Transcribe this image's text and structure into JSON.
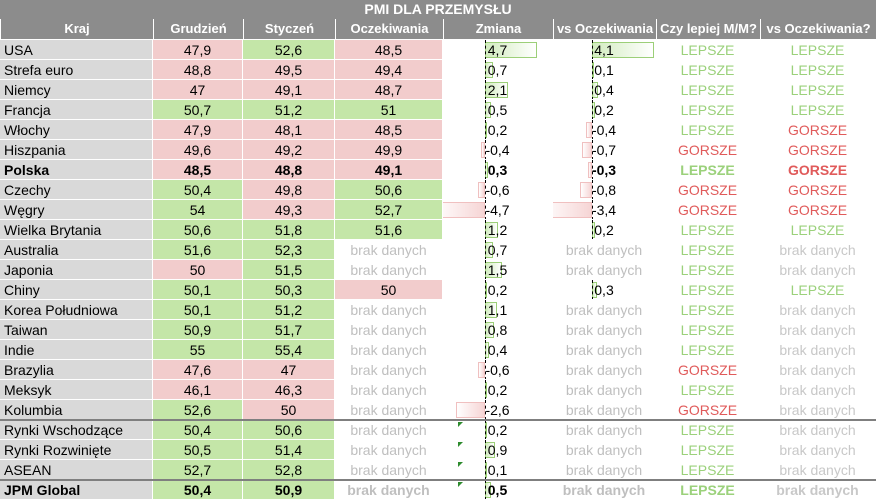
{
  "title": "PMI DLA PRZEMYSŁU",
  "headers": [
    "Kraj",
    "Grudzień",
    "Styczeń",
    "Oczekiwania",
    "Zmiana",
    "vs Oczekiwania",
    "Czy lepiej M/M?",
    "vs Oczekiwania?"
  ],
  "colors": {
    "header_bg": "#8c8c8c",
    "good_text": "#9bd17b",
    "bad_text": "#e05a5a",
    "green_cell": "#c4e6a8",
    "red_cell": "#f2cccc"
  },
  "rows": [
    {
      "kraj": "USA",
      "gru": "47,9",
      "sty": "52,6",
      "ocz": "48,5",
      "zm": "4,7",
      "zmv": 4.7,
      "vs": "4,1",
      "vsv": 4.1,
      "mm": "LEPSZE",
      "vo": "LEPSZE",
      "gc": "red",
      "sc": "green",
      "oc": "red"
    },
    {
      "kraj": "Strefa euro",
      "gru": "48,8",
      "sty": "49,5",
      "ocz": "49,4",
      "zm": "0,7",
      "zmv": 0.7,
      "vs": "0,1",
      "vsv": 0.1,
      "mm": "LEPSZE",
      "vo": "LEPSZE",
      "gc": "red",
      "sc": "red",
      "oc": "red"
    },
    {
      "kraj": "Niemcy",
      "gru": "47",
      "sty": "49,1",
      "ocz": "48,7",
      "zm": "2,1",
      "zmv": 2.1,
      "vs": "0,4",
      "vsv": 0.4,
      "mm": "LEPSZE",
      "vo": "LEPSZE",
      "gc": "red",
      "sc": "red",
      "oc": "red"
    },
    {
      "kraj": "Francja",
      "gru": "50,7",
      "sty": "51,2",
      "ocz": "51",
      "zm": "0,5",
      "zmv": 0.5,
      "vs": "0,2",
      "vsv": 0.2,
      "mm": "LEPSZE",
      "vo": "LEPSZE",
      "gc": "green",
      "sc": "green",
      "oc": "green"
    },
    {
      "kraj": "Włochy",
      "gru": "47,9",
      "sty": "48,1",
      "ocz": "48,5",
      "zm": "0,2",
      "zmv": 0.2,
      "vs": "-0,4",
      "vsv": -0.4,
      "mm": "LEPSZE",
      "vo": "GORSZE",
      "gc": "red",
      "sc": "red",
      "oc": "red"
    },
    {
      "kraj": "Hiszpania",
      "gru": "49,6",
      "sty": "49,2",
      "ocz": "49,9",
      "zm": "-0,4",
      "zmv": -0.4,
      "vs": "-0,7",
      "vsv": -0.7,
      "mm": "GORSZE",
      "vo": "GORSZE",
      "gc": "red",
      "sc": "red",
      "oc": "red"
    },
    {
      "kraj": "Polska",
      "gru": "48,5",
      "sty": "48,8",
      "ocz": "49,1",
      "zm": "0,3",
      "zmv": 0.3,
      "vs": "-0,3",
      "vsv": -0.3,
      "mm": "LEPSZE",
      "vo": "GORSZE",
      "gc": "red",
      "sc": "red",
      "oc": "red",
      "bold": true
    },
    {
      "kraj": "Czechy",
      "gru": "50,4",
      "sty": "49,8",
      "ocz": "50,6",
      "zm": "-0,6",
      "zmv": -0.6,
      "vs": "-0,8",
      "vsv": -0.8,
      "mm": "GORSZE",
      "vo": "GORSZE",
      "gc": "green",
      "sc": "red",
      "oc": "green"
    },
    {
      "kraj": "Węgry",
      "gru": "54",
      "sty": "49,3",
      "ocz": "52,7",
      "zm": "-4,7",
      "zmv": -4.7,
      "vs": "-3,4",
      "vsv": -3.4,
      "mm": "GORSZE",
      "vo": "GORSZE",
      "gc": "green",
      "sc": "red",
      "oc": "green"
    },
    {
      "kraj": "Wielka Brytania",
      "gru": "50,6",
      "sty": "51,8",
      "ocz": "51,6",
      "zm": "1,2",
      "zmv": 1.2,
      "vs": "0,2",
      "vsv": 0.2,
      "mm": "LEPSZE",
      "vo": "LEPSZE",
      "gc": "green",
      "sc": "green",
      "oc": "green"
    },
    {
      "kraj": "Australia",
      "gru": "51,6",
      "sty": "52,3",
      "ocz": "brak danych",
      "zm": "0,7",
      "zmv": 0.7,
      "vs": "brak danych",
      "mm": "LEPSZE",
      "vo": "brak danych",
      "gc": "green",
      "sc": "green",
      "oc": "nd"
    },
    {
      "kraj": "Japonia",
      "gru": "50",
      "sty": "51,5",
      "ocz": "brak danych",
      "zm": "1,5",
      "zmv": 1.5,
      "vs": "brak danych",
      "mm": "LEPSZE",
      "vo": "brak danych",
      "gc": "red",
      "sc": "green",
      "oc": "nd"
    },
    {
      "kraj": "Chiny",
      "gru": "50,1",
      "sty": "50,3",
      "ocz": "50",
      "zm": "0,2",
      "zmv": 0.2,
      "vs": "0,3",
      "vsv": 0.3,
      "mm": "LEPSZE",
      "vo": "LEPSZE",
      "gc": "green",
      "sc": "green",
      "oc": "red"
    },
    {
      "kraj": "Korea Południowa",
      "gru": "50,1",
      "sty": "51,2",
      "ocz": "brak danych",
      "zm": "1,1",
      "zmv": 1.1,
      "vs": "brak danych",
      "mm": "LEPSZE",
      "vo": "brak danych",
      "gc": "green",
      "sc": "green",
      "oc": "nd"
    },
    {
      "kraj": "Taiwan",
      "gru": "50,9",
      "sty": "51,7",
      "ocz": "brak danych",
      "zm": "0,8",
      "zmv": 0.8,
      "vs": "brak danych",
      "mm": "LEPSZE",
      "vo": "brak danych",
      "gc": "green",
      "sc": "green",
      "oc": "nd"
    },
    {
      "kraj": "Indie",
      "gru": "55",
      "sty": "55,4",
      "ocz": "brak danych",
      "zm": "0,4",
      "zmv": 0.4,
      "vs": "brak danych",
      "mm": "LEPSZE",
      "vo": "brak danych",
      "gc": "green",
      "sc": "green",
      "oc": "nd"
    },
    {
      "kraj": "Brazylia",
      "gru": "47,6",
      "sty": "47",
      "ocz": "brak danych",
      "zm": "-0,6",
      "zmv": -0.6,
      "vs": "brak danych",
      "mm": "GORSZE",
      "vo": "brak danych",
      "gc": "red",
      "sc": "red",
      "oc": "nd"
    },
    {
      "kraj": "Meksyk",
      "gru": "46,1",
      "sty": "46,3",
      "ocz": "brak danych",
      "zm": "0,2",
      "zmv": 0.2,
      "vs": "brak danych",
      "mm": "LEPSZE",
      "vo": "brak danych",
      "gc": "red",
      "sc": "red",
      "oc": "nd"
    },
    {
      "kraj": "Kolumbia",
      "gru": "52,6",
      "sty": "50",
      "ocz": "brak danych",
      "zm": "-2,6",
      "zmv": -2.6,
      "vs": "brak danych",
      "mm": "GORSZE",
      "vo": "brak danych",
      "gc": "green",
      "sc": "red",
      "oc": "nd"
    },
    {
      "kraj": "Rynki Wschodzące",
      "gru": "50,4",
      "sty": "50,6",
      "ocz": "brak danych",
      "zm": "0,2",
      "zmv": 0.2,
      "vs": "brak danych",
      "mm": "LEPSZE",
      "vo": "brak danych",
      "gc": "green",
      "sc": "green",
      "oc": "nd",
      "tri": true
    },
    {
      "kraj": "Rynki Rozwinięte",
      "gru": "50,5",
      "sty": "51,4",
      "ocz": "brak danych",
      "zm": "0,9",
      "zmv": 0.9,
      "vs": "brak danych",
      "mm": "LEPSZE",
      "vo": "brak danych",
      "gc": "green",
      "sc": "green",
      "oc": "nd",
      "tri": true
    },
    {
      "kraj": "ASEAN",
      "gru": "52,7",
      "sty": "52,8",
      "ocz": "brak danych",
      "zm": "0,1",
      "zmv": 0.1,
      "vs": "brak danych",
      "mm": "LEPSZE",
      "vo": "brak danych",
      "gc": "green",
      "sc": "green",
      "oc": "nd",
      "tri": true
    },
    {
      "kraj": "JPM Global",
      "gru": "50,4",
      "sty": "50,9",
      "ocz": "brak danych",
      "zm": "0,5",
      "zmv": 0.5,
      "vs": "brak danych",
      "mm": "LEPSZE",
      "vo": "brak danych",
      "gc": "green",
      "sc": "green",
      "oc": "nd",
      "bold": true,
      "tri": true
    }
  ]
}
